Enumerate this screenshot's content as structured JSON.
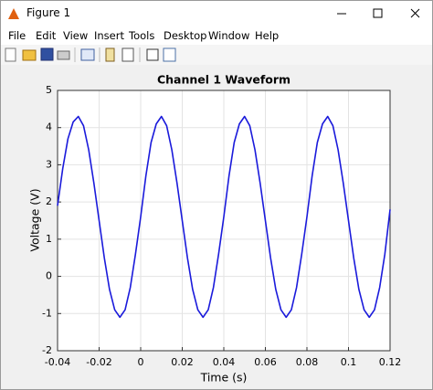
{
  "window": {
    "title": "Figure 1"
  },
  "menu": [
    "File",
    "Edit",
    "View",
    "Insert",
    "Tools",
    "Desktop",
    "Window",
    "Help"
  ],
  "chart_data": {
    "type": "line",
    "title": "Channel 1 Waveform",
    "x_label": "Time (s)",
    "y_label": "Voltage (V)",
    "x": [
      -0.04,
      -0.0375,
      -0.035,
      -0.0325,
      -0.03,
      -0.0275,
      -0.025,
      -0.0225,
      -0.02,
      -0.0175,
      -0.015,
      -0.0125,
      -0.01,
      -0.0075,
      -0.005,
      -0.0025,
      0,
      0.0025,
      0.005,
      0.0075,
      0.01,
      0.0125,
      0.015,
      0.0175,
      0.02,
      0.0225,
      0.025,
      0.0275,
      0.03,
      0.0325,
      0.035,
      0.0375,
      0.04,
      0.0425,
      0.045,
      0.0475,
      0.05,
      0.0525,
      0.055,
      0.0575,
      0.06,
      0.0625,
      0.065,
      0.0675,
      0.07,
      0.0725,
      0.075,
      0.0775,
      0.08,
      0.0825,
      0.085,
      0.0875,
      0.09,
      0.0925,
      0.095,
      0.0975,
      0.1,
      0.1025,
      0.105,
      0.1075,
      0.11,
      0.1125,
      0.115,
      0.1175,
      0.12
    ],
    "series": [
      {
        "name": "Channel 1",
        "color": "#1a1adb",
        "values": [
          1.9,
          2.9,
          3.7,
          4.15,
          4.3,
          4.05,
          3.4,
          2.5,
          1.5,
          0.5,
          -0.35,
          -0.9,
          -1.1,
          -0.9,
          -0.3,
          0.6,
          1.6,
          2.7,
          3.6,
          4.1,
          4.3,
          4.05,
          3.4,
          2.5,
          1.5,
          0.5,
          -0.35,
          -0.9,
          -1.1,
          -0.9,
          -0.3,
          0.6,
          1.6,
          2.7,
          3.6,
          4.1,
          4.3,
          4.05,
          3.4,
          2.5,
          1.5,
          0.5,
          -0.35,
          -0.9,
          -1.1,
          -0.9,
          -0.3,
          0.6,
          1.6,
          2.7,
          3.6,
          4.1,
          4.3,
          4.05,
          3.4,
          2.5,
          1.5,
          0.5,
          -0.35,
          -0.9,
          -1.1,
          -0.9,
          -0.3,
          0.6,
          1.8
        ]
      }
    ],
    "xlim": [
      -0.04,
      0.12
    ],
    "xticks": [
      -0.04,
      -0.02,
      0,
      0.02,
      0.04,
      0.06,
      0.08,
      0.1,
      0.12
    ],
    "ylim": [
      -2,
      5
    ],
    "yticks": [
      -2,
      -1,
      0,
      1,
      2,
      3,
      4,
      5
    ],
    "grid": true
  }
}
